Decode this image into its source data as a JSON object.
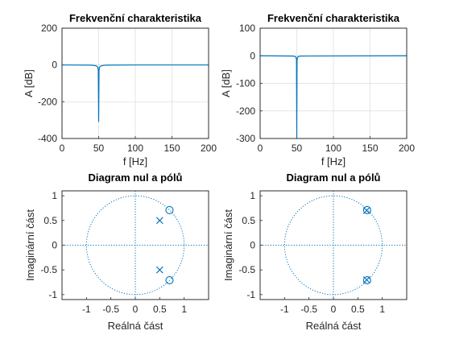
{
  "chart_data": [
    {
      "id": "freq1",
      "type": "line",
      "title": "Frekvenční charakteristika",
      "xlabel": "f [Hz]",
      "ylabel": "A [dB]",
      "xlim": [
        0,
        200
      ],
      "ylim": [
        -400,
        200
      ],
      "xticks": [
        0,
        50,
        100,
        150,
        200
      ],
      "yticks": [
        -400,
        -200,
        0,
        200
      ],
      "grid": true,
      "series": [
        {
          "name": "A",
          "x": [
            0,
            40,
            45,
            48,
            49,
            49.5,
            50,
            50.5,
            51,
            52,
            55,
            60,
            100,
            200
          ],
          "y": [
            0,
            -1,
            -3,
            -8,
            -15,
            -30,
            -310,
            -30,
            -15,
            -8,
            -3,
            -1,
            0,
            0
          ]
        }
      ]
    },
    {
      "id": "freq2",
      "type": "line",
      "title": "Frekvenční charakteristika",
      "xlabel": "f [Hz]",
      "ylabel": "A [dB]",
      "xlim": [
        0,
        200
      ],
      "ylim": [
        -300,
        100
      ],
      "xticks": [
        0,
        50,
        100,
        150,
        200
      ],
      "yticks": [
        -300,
        -200,
        -100,
        0,
        100
      ],
      "grid": true,
      "series": [
        {
          "name": "A",
          "x": [
            0,
            45,
            48,
            49,
            49.6,
            50,
            50.4,
            51,
            52,
            55,
            200
          ],
          "y": [
            0,
            -1,
            -3,
            -6,
            -15,
            -300,
            -15,
            -6,
            -3,
            -1,
            0
          ]
        }
      ]
    },
    {
      "id": "pz1",
      "type": "scatter",
      "title": "Diagram nul a pólů",
      "xlabel": "Reálná část",
      "ylabel": "Imaginární část",
      "xlim": [
        -1.5,
        1.5
      ],
      "ylim": [
        -1.1,
        1.1
      ],
      "xticks": [
        -1,
        -0.5,
        0,
        0.5,
        1
      ],
      "yticks": [
        -1,
        -0.5,
        0,
        0.5,
        1
      ],
      "grid": false,
      "unit_circle": true,
      "zeros": [
        [
          0.7,
          0.71
        ],
        [
          0.7,
          -0.71
        ]
      ],
      "poles": [
        [
          0.5,
          0.5
        ],
        [
          0.5,
          -0.5
        ]
      ]
    },
    {
      "id": "pz2",
      "type": "scatter",
      "title": "Diagram nul a pólů",
      "xlabel": "Reálná část",
      "ylabel": "Imaginární část",
      "xlim": [
        -1.5,
        1.5
      ],
      "ylim": [
        -1.1,
        1.1
      ],
      "xticks": [
        -1,
        -0.5,
        0,
        0.5,
        1
      ],
      "yticks": [
        -1,
        -0.5,
        0,
        0.5,
        1
      ],
      "grid": false,
      "unit_circle": true,
      "zeros": [
        [
          0.69,
          0.71
        ],
        [
          0.69,
          -0.71
        ]
      ],
      "poles": [
        [
          0.68,
          0.7
        ],
        [
          0.68,
          -0.7
        ]
      ]
    }
  ],
  "colors": {
    "line": "#0072BD",
    "text": "#262626"
  }
}
